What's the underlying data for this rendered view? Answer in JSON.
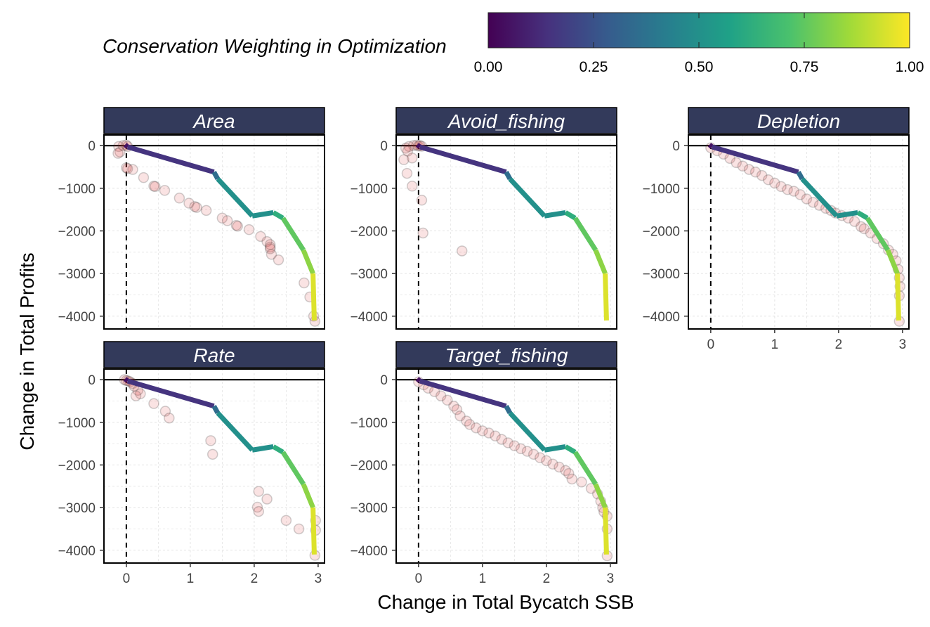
{
  "chart_data": {
    "type": "line",
    "xlabel": "Change in Total Bycatch SSB",
    "ylabel": "Change in Total Profits",
    "xlim": [
      -0.35,
      3.1
    ],
    "ylim": [
      -4300,
      250
    ],
    "xticks": [
      0,
      1,
      2,
      3
    ],
    "yticks": [
      0,
      -1000,
      -2000,
      -3000,
      -4000
    ],
    "xtick_labels": [
      "0",
      "1",
      "2",
      "3"
    ],
    "ytick_labels": [
      "0",
      "−1000",
      "−2000",
      "−3000",
      "−4000"
    ],
    "grid": true,
    "reference_lines": {
      "x": 0,
      "y": 0
    },
    "legend": {
      "title": "Conservation Weighting in Optimization",
      "position": "top",
      "colormap": "viridis",
      "range": [
        0,
        1
      ],
      "ticks": [
        0,
        0.25,
        0.5,
        0.75,
        1
      ],
      "tick_labels": [
        "0.00",
        "0.25",
        "0.50",
        "0.75",
        "1.00"
      ]
    },
    "colors": {
      "frontier": [
        "#440154",
        "#46327e",
        "#365c8d",
        "#277f8e",
        "#1fa187",
        "#4ac16d",
        "#a0da39",
        "#fde725"
      ],
      "points": "#d62728",
      "strip": "#333a5b"
    },
    "frontier": [
      {
        "x": -0.02,
        "y": 20,
        "w": 0.0
      },
      {
        "x": 0.02,
        "y": -30,
        "w": 0.1
      },
      {
        "x": 1.37,
        "y": -620,
        "w": 0.2
      },
      {
        "x": 1.43,
        "y": -780,
        "w": 0.5
      },
      {
        "x": 1.97,
        "y": -1650,
        "w": 0.5
      },
      {
        "x": 2.3,
        "y": -1570,
        "w": 0.5
      },
      {
        "x": 2.45,
        "y": -1700,
        "w": 0.75
      },
      {
        "x": 2.77,
        "y": -2450,
        "w": 0.75
      },
      {
        "x": 2.92,
        "y": -3000,
        "w": 0.9
      },
      {
        "x": 2.94,
        "y": -4100,
        "w": 1.0
      }
    ],
    "panels": [
      {
        "title": "Area",
        "points": [
          {
            "x": -0.12,
            "y": -20
          },
          {
            "x": -0.05,
            "y": 0
          },
          {
            "x": 0.0,
            "y": 10
          },
          {
            "x": 0.02,
            "y": -20
          },
          {
            "x": -0.1,
            "y": -150
          },
          {
            "x": -0.13,
            "y": -180
          },
          {
            "x": 0.0,
            "y": -520
          },
          {
            "x": 0.02,
            "y": -540
          },
          {
            "x": 0.1,
            "y": -560
          },
          {
            "x": 0.27,
            "y": -750
          },
          {
            "x": 0.43,
            "y": -950
          },
          {
            "x": 0.45,
            "y": -960
          },
          {
            "x": 0.6,
            "y": -1050
          },
          {
            "x": 0.83,
            "y": -1230
          },
          {
            "x": 0.98,
            "y": -1350
          },
          {
            "x": 1.07,
            "y": -1430
          },
          {
            "x": 1.1,
            "y": -1450
          },
          {
            "x": 1.25,
            "y": -1520
          },
          {
            "x": 1.5,
            "y": -1700
          },
          {
            "x": 1.58,
            "y": -1760
          },
          {
            "x": 1.72,
            "y": -1870
          },
          {
            "x": 1.74,
            "y": -1890
          },
          {
            "x": 1.92,
            "y": -1970
          },
          {
            "x": 2.1,
            "y": -2130
          },
          {
            "x": 2.2,
            "y": -2250
          },
          {
            "x": 2.25,
            "y": -2320
          },
          {
            "x": 2.25,
            "y": -2380
          },
          {
            "x": 2.25,
            "y": -2420
          },
          {
            "x": 2.27,
            "y": -2550
          },
          {
            "x": 2.38,
            "y": -2680
          },
          {
            "x": 2.78,
            "y": -3220
          },
          {
            "x": 2.87,
            "y": -3550
          },
          {
            "x": 2.93,
            "y": -4000
          },
          {
            "x": 2.95,
            "y": -4120
          }
        ]
      },
      {
        "title": "Avoid_fishing",
        "points": [
          {
            "x": -0.15,
            "y": -20
          },
          {
            "x": -0.08,
            "y": 0
          },
          {
            "x": -0.03,
            "y": 10
          },
          {
            "x": 0.0,
            "y": -10
          },
          {
            "x": 0.02,
            "y": 5
          },
          {
            "x": 0.05,
            "y": -15
          },
          {
            "x": -0.2,
            "y": -60
          },
          {
            "x": -0.17,
            "y": -130
          },
          {
            "x": -0.23,
            "y": -330
          },
          {
            "x": -0.1,
            "y": -290
          },
          {
            "x": -0.18,
            "y": -650
          },
          {
            "x": -0.1,
            "y": -950
          },
          {
            "x": 0.05,
            "y": -1280
          },
          {
            "x": 0.07,
            "y": -2050
          },
          {
            "x": 0.68,
            "y": -2470
          }
        ]
      },
      {
        "title": "Depletion",
        "points": [
          {
            "x": 0.0,
            "y": -50
          },
          {
            "x": 0.1,
            "y": -120
          },
          {
            "x": 0.2,
            "y": -200
          },
          {
            "x": 0.3,
            "y": -300
          },
          {
            "x": 0.4,
            "y": -400
          },
          {
            "x": 0.5,
            "y": -480
          },
          {
            "x": 0.6,
            "y": -560
          },
          {
            "x": 0.7,
            "y": -620
          },
          {
            "x": 0.8,
            "y": -700
          },
          {
            "x": 0.9,
            "y": -800
          },
          {
            "x": 1.0,
            "y": -880
          },
          {
            "x": 1.1,
            "y": -960
          },
          {
            "x": 1.2,
            "y": -1030
          },
          {
            "x": 1.3,
            "y": -1070
          },
          {
            "x": 1.4,
            "y": -1150
          },
          {
            "x": 1.5,
            "y": -1250
          },
          {
            "x": 1.6,
            "y": -1330
          },
          {
            "x": 1.7,
            "y": -1400
          },
          {
            "x": 1.8,
            "y": -1470
          },
          {
            "x": 1.88,
            "y": -1520
          },
          {
            "x": 1.95,
            "y": -1580
          },
          {
            "x": 2.05,
            "y": -1640
          },
          {
            "x": 2.15,
            "y": -1700
          },
          {
            "x": 2.25,
            "y": -1780
          },
          {
            "x": 2.35,
            "y": -1900
          },
          {
            "x": 2.4,
            "y": -1950
          },
          {
            "x": 2.5,
            "y": -2050
          },
          {
            "x": 2.6,
            "y": -2180
          },
          {
            "x": 2.7,
            "y": -2300
          },
          {
            "x": 2.78,
            "y": -2450
          },
          {
            "x": 2.85,
            "y": -2550
          },
          {
            "x": 2.9,
            "y": -2700
          },
          {
            "x": 2.93,
            "y": -2900
          },
          {
            "x": 2.95,
            "y": -3100
          },
          {
            "x": 2.96,
            "y": -3300
          },
          {
            "x": 2.95,
            "y": -3520
          },
          {
            "x": 2.95,
            "y": -4120
          }
        ]
      },
      {
        "title": "Rate",
        "points": [
          {
            "x": -0.03,
            "y": 0
          },
          {
            "x": 0.0,
            "y": -20
          },
          {
            "x": 0.03,
            "y": -30
          },
          {
            "x": 0.06,
            "y": -50
          },
          {
            "x": 0.1,
            "y": -90
          },
          {
            "x": 0.12,
            "y": -150
          },
          {
            "x": 0.18,
            "y": -250
          },
          {
            "x": 0.22,
            "y": -330
          },
          {
            "x": 0.15,
            "y": -380
          },
          {
            "x": 0.43,
            "y": -560
          },
          {
            "x": 0.61,
            "y": -740
          },
          {
            "x": 0.67,
            "y": -900
          },
          {
            "x": 1.32,
            "y": -1430
          },
          {
            "x": 1.35,
            "y": -1750
          },
          {
            "x": 2.07,
            "y": -2620
          },
          {
            "x": 2.2,
            "y": -2800
          },
          {
            "x": 2.05,
            "y": -2990
          },
          {
            "x": 2.07,
            "y": -3090
          },
          {
            "x": 2.5,
            "y": -3300
          },
          {
            "x": 2.7,
            "y": -3500
          },
          {
            "x": 2.96,
            "y": -3300
          },
          {
            "x": 2.96,
            "y": -3530
          },
          {
            "x": 2.95,
            "y": -4120
          }
        ]
      },
      {
        "title": "Target_fishing",
        "points": [
          {
            "x": 0.0,
            "y": -50
          },
          {
            "x": 0.08,
            "y": -120
          },
          {
            "x": 0.15,
            "y": -200
          },
          {
            "x": 0.25,
            "y": -280
          },
          {
            "x": 0.35,
            "y": -380
          },
          {
            "x": 0.45,
            "y": -480
          },
          {
            "x": 0.55,
            "y": -620
          },
          {
            "x": 0.6,
            "y": -700
          },
          {
            "x": 0.65,
            "y": -850
          },
          {
            "x": 0.75,
            "y": -970
          },
          {
            "x": 0.8,
            "y": -1050
          },
          {
            "x": 0.9,
            "y": -1130
          },
          {
            "x": 1.0,
            "y": -1200
          },
          {
            "x": 1.1,
            "y": -1250
          },
          {
            "x": 1.2,
            "y": -1320
          },
          {
            "x": 1.3,
            "y": -1400
          },
          {
            "x": 1.4,
            "y": -1480
          },
          {
            "x": 1.5,
            "y": -1550
          },
          {
            "x": 1.6,
            "y": -1620
          },
          {
            "x": 1.7,
            "y": -1680
          },
          {
            "x": 1.8,
            "y": -1750
          },
          {
            "x": 1.9,
            "y": -1830
          },
          {
            "x": 2.0,
            "y": -1900
          },
          {
            "x": 2.1,
            "y": -1980
          },
          {
            "x": 2.2,
            "y": -2050
          },
          {
            "x": 2.3,
            "y": -2130
          },
          {
            "x": 2.35,
            "y": -2200
          },
          {
            "x": 2.4,
            "y": -2330
          },
          {
            "x": 2.55,
            "y": -2400
          },
          {
            "x": 2.7,
            "y": -2550
          },
          {
            "x": 2.8,
            "y": -2680
          },
          {
            "x": 2.85,
            "y": -2850
          },
          {
            "x": 2.88,
            "y": -3000
          },
          {
            "x": 2.9,
            "y": -3100
          },
          {
            "x": 2.95,
            "y": -3200
          },
          {
            "x": 2.95,
            "y": -3500
          },
          {
            "x": 2.95,
            "y": -4130
          }
        ]
      }
    ]
  }
}
